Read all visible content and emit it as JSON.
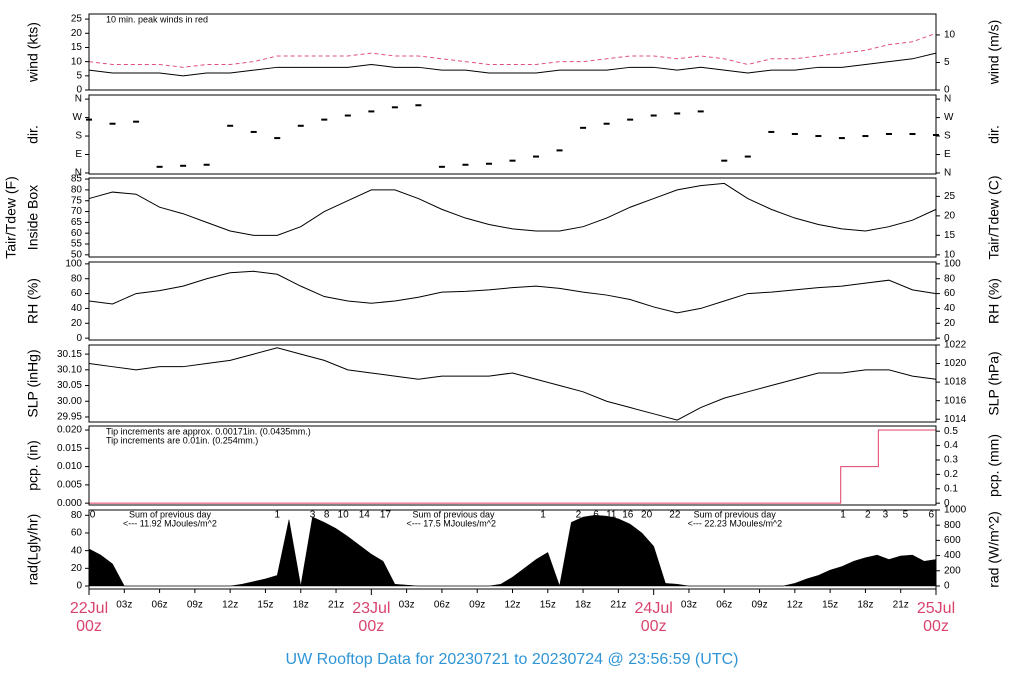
{
  "title": "UW Rooftop Data for 20230721  to  20230724 @ 23:56:59  (UTC)",
  "xlim": [
    0,
    72
  ],
  "xticks": [
    {
      "value": 3,
      "label": "03z"
    },
    {
      "value": 6,
      "label": "06z"
    },
    {
      "value": 9,
      "label": "09z"
    },
    {
      "value": 12,
      "label": "12z"
    },
    {
      "value": 15,
      "label": "15z"
    },
    {
      "value": 18,
      "label": "18z"
    },
    {
      "value": 21,
      "label": "21z"
    },
    {
      "value": 27,
      "label": "03z"
    },
    {
      "value": 30,
      "label": "06z"
    },
    {
      "value": 33,
      "label": "09z"
    },
    {
      "value": 36,
      "label": "12z"
    },
    {
      "value": 39,
      "label": "15z"
    },
    {
      "value": 42,
      "label": "18z"
    },
    {
      "value": 45,
      "label": "21z"
    },
    {
      "value": 51,
      "label": "03z"
    },
    {
      "value": 54,
      "label": "06z"
    },
    {
      "value": 57,
      "label": "09z"
    },
    {
      "value": 60,
      "label": "12z"
    },
    {
      "value": 63,
      "label": "15z"
    },
    {
      "value": 66,
      "label": "18z"
    },
    {
      "value": 69,
      "label": "21z"
    }
  ],
  "date_ticks": [
    {
      "value": 0,
      "date": "22Jul",
      "hour": "00z"
    },
    {
      "value": 24,
      "date": "23Jul",
      "hour": "00z"
    },
    {
      "value": 48,
      "date": "24Jul",
      "hour": "00z"
    },
    {
      "value": 72,
      "date": "25Jul",
      "hour": "00z"
    }
  ],
  "chart_data": [
    {
      "type": "line",
      "ylabel": "wind (kts)",
      "y2label": "wind (m/s)",
      "annotations": [
        {
          "text": "10 min. peak winds in red",
          "color": "#d9446e"
        }
      ],
      "ylim": [
        0,
        26.8
      ],
      "yticks": [
        0,
        5,
        10,
        15,
        20,
        25
      ],
      "y2lim": [
        0,
        13.8
      ],
      "y2ticks": [
        0,
        5,
        10
      ],
      "x": [
        0,
        2,
        4,
        6,
        8,
        10,
        12,
        14,
        16,
        18,
        20,
        22,
        24,
        26,
        28,
        30,
        32,
        34,
        36,
        38,
        40,
        42,
        44,
        46,
        48,
        50,
        52,
        54,
        56,
        58,
        60,
        62,
        64,
        66,
        68,
        70,
        72
      ],
      "series": [
        {
          "color": "#000000",
          "style": "solid",
          "values": [
            7,
            6,
            6,
            6,
            5,
            6,
            6,
            7,
            8,
            8,
            8,
            8,
            9,
            8,
            8,
            7,
            7,
            6,
            6,
            6,
            7,
            7,
            7,
            8,
            8,
            7,
            8,
            7,
            6,
            7,
            7,
            8,
            8,
            9,
            10,
            11,
            13
          ]
        },
        {
          "color": "#e0507a",
          "style": "dash",
          "values": [
            10,
            9,
            9,
            9,
            8,
            9,
            9,
            10,
            12,
            12,
            12,
            12,
            13,
            12,
            12,
            11,
            10,
            9,
            9,
            9,
            10,
            10,
            11,
            12,
            12,
            11,
            12,
            11,
            9,
            11,
            11,
            12,
            13,
            14,
            16,
            17,
            20
          ]
        }
      ]
    },
    {
      "type": "scatter",
      "ylabel": "dir.",
      "y2label": "dir.",
      "ylim": [
        -5,
        380
      ],
      "yticks": [
        {
          "value": 0,
          "label": "N"
        },
        {
          "value": 90,
          "label": "E"
        },
        {
          "value": 180,
          "label": "S"
        },
        {
          "value": 270,
          "label": "W"
        },
        {
          "value": 360,
          "label": "N"
        }
      ],
      "y2lim": [
        -5,
        380
      ],
      "y2ticks": [
        {
          "value": 0,
          "label": "N"
        },
        {
          "value": 90,
          "label": "E"
        },
        {
          "value": 180,
          "label": "S"
        },
        {
          "value": 270,
          "label": "W"
        },
        {
          "value": 360,
          "label": "N"
        }
      ],
      "x": [
        0,
        2,
        4,
        6,
        8,
        10,
        12,
        14,
        16,
        18,
        20,
        22,
        24,
        26,
        28,
        30,
        32,
        34,
        36,
        38,
        40,
        42,
        44,
        46,
        48,
        50,
        52,
        54,
        56,
        58,
        60,
        62,
        64,
        66,
        68,
        70,
        72
      ],
      "series": [
        {
          "color": "#000000",
          "values": [
            260,
            240,
            250,
            30,
            35,
            40,
            230,
            200,
            170,
            230,
            260,
            280,
            300,
            320,
            330,
            30,
            40,
            45,
            60,
            80,
            110,
            220,
            240,
            260,
            280,
            290,
            300,
            60,
            80,
            200,
            190,
            180,
            170,
            180,
            190,
            190,
            185
          ]
        }
      ]
    },
    {
      "type": "line",
      "ylabel": [
        "Tair/Tdew (F)",
        "Inside Box"
      ],
      "y2label": "Tair/Tdew (C)",
      "ylim": [
        49,
        85.5
      ],
      "yticks": [
        50,
        55,
        60,
        65,
        70,
        75,
        80,
        85
      ],
      "y2lim": [
        9.44,
        29.72
      ],
      "y2ticks": [
        10,
        15,
        20,
        25
      ],
      "x": [
        0,
        2,
        4,
        6,
        8,
        10,
        12,
        14,
        16,
        18,
        20,
        22,
        24,
        26,
        28,
        30,
        32,
        34,
        36,
        38,
        40,
        42,
        44,
        46,
        48,
        50,
        52,
        54,
        56,
        58,
        60,
        62,
        64,
        66,
        68,
        70,
        72
      ],
      "series": [
        {
          "color": "#000000",
          "style": "solid",
          "values": [
            76,
            79,
            78,
            72,
            69,
            65,
            61,
            59,
            59,
            63,
            70,
            75,
            80,
            80,
            76,
            71,
            67,
            64,
            62,
            61,
            61,
            63,
            67,
            72,
            76,
            80,
            82,
            83,
            76,
            71,
            67,
            64,
            62,
            61,
            63,
            66,
            71
          ]
        }
      ]
    },
    {
      "type": "line",
      "ylabel": "RH (%)",
      "y2label": "RH (%)",
      "ylim": [
        -2.5,
        102.5
      ],
      "yticks": [
        0,
        20,
        40,
        60,
        80,
        100
      ],
      "y2lim": [
        -2.5,
        102.5
      ],
      "y2ticks": [
        0,
        20,
        40,
        60,
        80,
        100
      ],
      "x": [
        0,
        2,
        4,
        6,
        8,
        10,
        12,
        14,
        16,
        18,
        20,
        22,
        24,
        26,
        28,
        30,
        32,
        34,
        36,
        38,
        40,
        42,
        44,
        46,
        48,
        50,
        52,
        54,
        56,
        58,
        60,
        62,
        64,
        66,
        68,
        70,
        72
      ],
      "series": [
        {
          "color": "#000000",
          "style": "solid",
          "values": [
            50,
            46,
            60,
            64,
            70,
            80,
            88,
            90,
            86,
            70,
            56,
            50,
            47,
            50,
            55,
            62,
            63,
            65,
            68,
            70,
            67,
            62,
            58,
            52,
            42,
            34,
            40,
            50,
            60,
            62,
            65,
            68,
            70,
            74,
            78,
            65,
            60
          ]
        }
      ]
    },
    {
      "type": "line",
      "ylabel": "SLP (inHg)",
      "y2label": "SLP (hPa)",
      "ylim": [
        29.934,
        30.179
      ],
      "yticks": [
        29.95,
        {
          "value": 30.0,
          "label": "30.00"
        },
        30.05,
        {
          "value": 30.1,
          "label": "30.10"
        },
        30.15
      ],
      "y2lim": [
        1013.7,
        1022.0
      ],
      "y2ticks": [
        1014,
        1016,
        1018,
        1020,
        1022
      ],
      "x": [
        0,
        2,
        4,
        6,
        8,
        10,
        12,
        14,
        16,
        18,
        20,
        22,
        24,
        26,
        28,
        30,
        32,
        34,
        36,
        38,
        40,
        42,
        44,
        46,
        48,
        50,
        52,
        54,
        56,
        58,
        60,
        62,
        64,
        66,
        68,
        70,
        72
      ],
      "series": [
        {
          "color": "#000000",
          "style": "solid",
          "values": [
            30.12,
            30.11,
            30.1,
            30.11,
            30.11,
            30.12,
            30.13,
            30.15,
            30.17,
            30.15,
            30.13,
            30.1,
            30.09,
            30.08,
            30.07,
            30.08,
            30.08,
            30.08,
            30.09,
            30.07,
            30.05,
            30.03,
            30.0,
            29.98,
            29.96,
            29.94,
            29.98,
            30.01,
            30.03,
            30.05,
            30.07,
            30.09,
            30.09,
            30.1,
            30.1,
            30.08,
            30.07
          ]
        }
      ]
    },
    {
      "type": "line",
      "ylabel": "pcp. (in)",
      "y2label": "pcp. (mm)",
      "annotations": [
        {
          "text": "Tip increments are approx. 0.00171in. (0.0435mm.)",
          "color": "#d9507a"
        },
        {
          "text": "Tip increments are 0.01in. (0.254mm.)",
          "color": "#3a8fd0"
        }
      ],
      "ylim": [
        -0.0005,
        0.0211
      ],
      "yticks": [
        {
          "value": 0,
          "label": "0.000"
        },
        {
          "value": 0.005,
          "label": "0.005"
        },
        {
          "value": 0.01,
          "label": "0.010"
        },
        {
          "value": 0.015,
          "label": "0.015"
        },
        {
          "value": 0.02,
          "label": "0.020"
        }
      ],
      "y2lim": [
        -0.0127,
        0.536
      ],
      "y2ticks": [
        0,
        0.1,
        0.2,
        0.3,
        0.4,
        0.5
      ],
      "x": [
        0,
        63.9,
        63.9,
        67.1,
        67.1,
        72
      ],
      "series": [
        {
          "color": "#e0406a",
          "style": "solid",
          "values": [
            0,
            0,
            0.01,
            0.01,
            0.02,
            0.02
          ]
        }
      ]
    },
    {
      "type": "area",
      "ylabel": "rad(Lgly/hr)",
      "y2label": "rad (W/m^2)",
      "ylim": [
        -3.4,
        86
      ],
      "yticks": [
        0,
        20,
        40,
        60,
        80
      ],
      "y2lim": [
        -40,
        1000
      ],
      "y2ticks": [
        0,
        200,
        400,
        600,
        800,
        1000
      ],
      "hour_labels": [
        {
          "x": 0.3,
          "text": "0"
        },
        {
          "x": 16,
          "text": "1"
        },
        {
          "x": 19,
          "text": "3"
        },
        {
          "x": 20.2,
          "text": "8"
        },
        {
          "x": 21.6,
          "text": "10"
        },
        {
          "x": 23.4,
          "text": "14"
        },
        {
          "x": 25.2,
          "text": "17"
        },
        {
          "x": 38.6,
          "text": "1"
        },
        {
          "x": 41.6,
          "text": "2"
        },
        {
          "x": 43.1,
          "text": "6"
        },
        {
          "x": 44.4,
          "text": "11"
        },
        {
          "x": 45.8,
          "text": "16"
        },
        {
          "x": 47.4,
          "text": "20"
        },
        {
          "x": 49.8,
          "text": "22"
        },
        {
          "x": 64.1,
          "text": "1"
        },
        {
          "x": 66.2,
          "text": "2"
        },
        {
          "x": 67.7,
          "text": "3"
        },
        {
          "x": 69.4,
          "text": "5"
        },
        {
          "x": 71.6,
          "text": "6"
        }
      ],
      "daily_sums": [
        {
          "x": 3.4,
          "heading": "Sum of previous day",
          "text": "<--- 11.92 MJoules/m^2"
        },
        {
          "x": 27.5,
          "heading": "Sum of previous day",
          "text": "<--- 17.5 MJoules/m^2"
        },
        {
          "x": 51.4,
          "heading": "Sum of previous day",
          "text": "<--- 22.23 MJoules/m^2"
        }
      ],
      "x": [
        0,
        1,
        2,
        3,
        4,
        5,
        6,
        7,
        8,
        9,
        10,
        11,
        12,
        13,
        14,
        15,
        16,
        17,
        18,
        19,
        20,
        21,
        22,
        23,
        24,
        25,
        26,
        27,
        28,
        29,
        30,
        31,
        32,
        33,
        34,
        35,
        36,
        37,
        38,
        39,
        40,
        41,
        42,
        43,
        44,
        45,
        46,
        47,
        48,
        49,
        50,
        51,
        52,
        53,
        54,
        55,
        56,
        57,
        58,
        59,
        60,
        61,
        62,
        63,
        64,
        65,
        66,
        67,
        68,
        69,
        70,
        71,
        72
      ],
      "series": [
        {
          "color": "#000000",
          "values": [
            42,
            35,
            25,
            0,
            0,
            0,
            0,
            0,
            0,
            0,
            0,
            0,
            0,
            2,
            5,
            8,
            12,
            75,
            0,
            78,
            72,
            65,
            56,
            46,
            36,
            28,
            2,
            1,
            0,
            0,
            0,
            0,
            0,
            0,
            0,
            2,
            10,
            20,
            30,
            38,
            0,
            72,
            78,
            80,
            79,
            76,
            70,
            60,
            45,
            3,
            2,
            0,
            0,
            0,
            0,
            0,
            0,
            0,
            0,
            0,
            3,
            8,
            12,
            18,
            22,
            28,
            32,
            35,
            30,
            34,
            35,
            28,
            30
          ]
        }
      ]
    }
  ]
}
